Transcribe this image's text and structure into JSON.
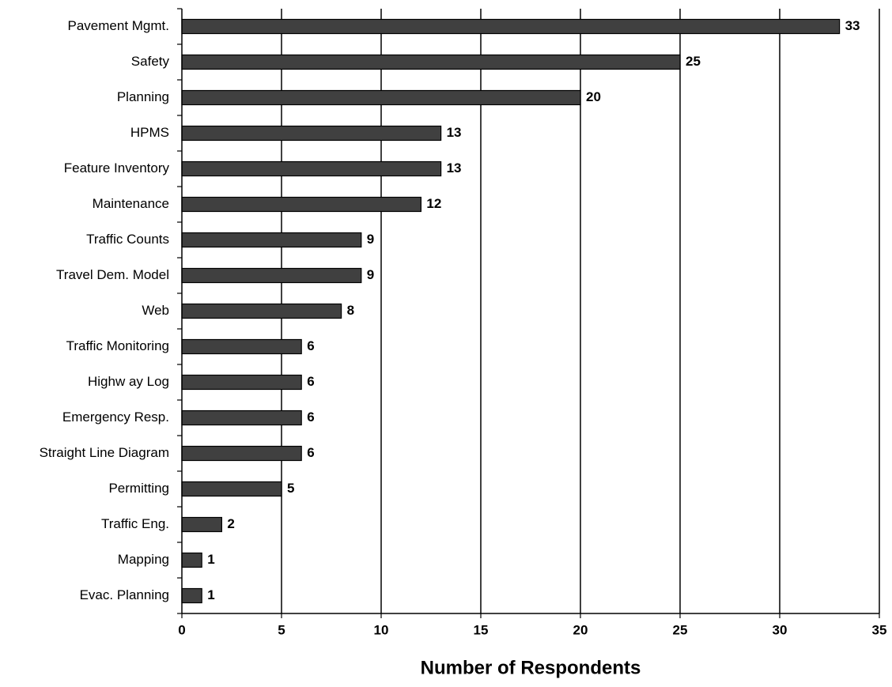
{
  "chart_data": {
    "type": "bar",
    "orientation": "horizontal",
    "title": "",
    "xlabel": "Number of Respondents",
    "ylabel": "",
    "xlim": [
      0,
      35
    ],
    "x_ticks": [
      0,
      5,
      10,
      15,
      20,
      25,
      30,
      35
    ],
    "grid": "vertical",
    "legend": "none",
    "data_labels": "outside-end",
    "categories": [
      "Pavement Mgmt.",
      "Safety",
      "Planning",
      "HPMS",
      "Feature Inventory",
      "Maintenance",
      "Traffic Counts",
      "Travel Dem. Model",
      "Web",
      "Traffic Monitoring",
      "Highw ay Log",
      "Emergency Resp.",
      "Straight Line Diagram",
      "Permitting",
      "Traffic Eng.",
      "Mapping",
      "Evac. Planning"
    ],
    "values": [
      33,
      25,
      20,
      13,
      13,
      12,
      9,
      9,
      8,
      6,
      6,
      6,
      6,
      5,
      2,
      1,
      1
    ],
    "colors": {
      "bar_fill": "#404040",
      "bar_stroke": "#000000",
      "grid": "#000000",
      "axis": "#000000",
      "background": "#ffffff"
    }
  }
}
